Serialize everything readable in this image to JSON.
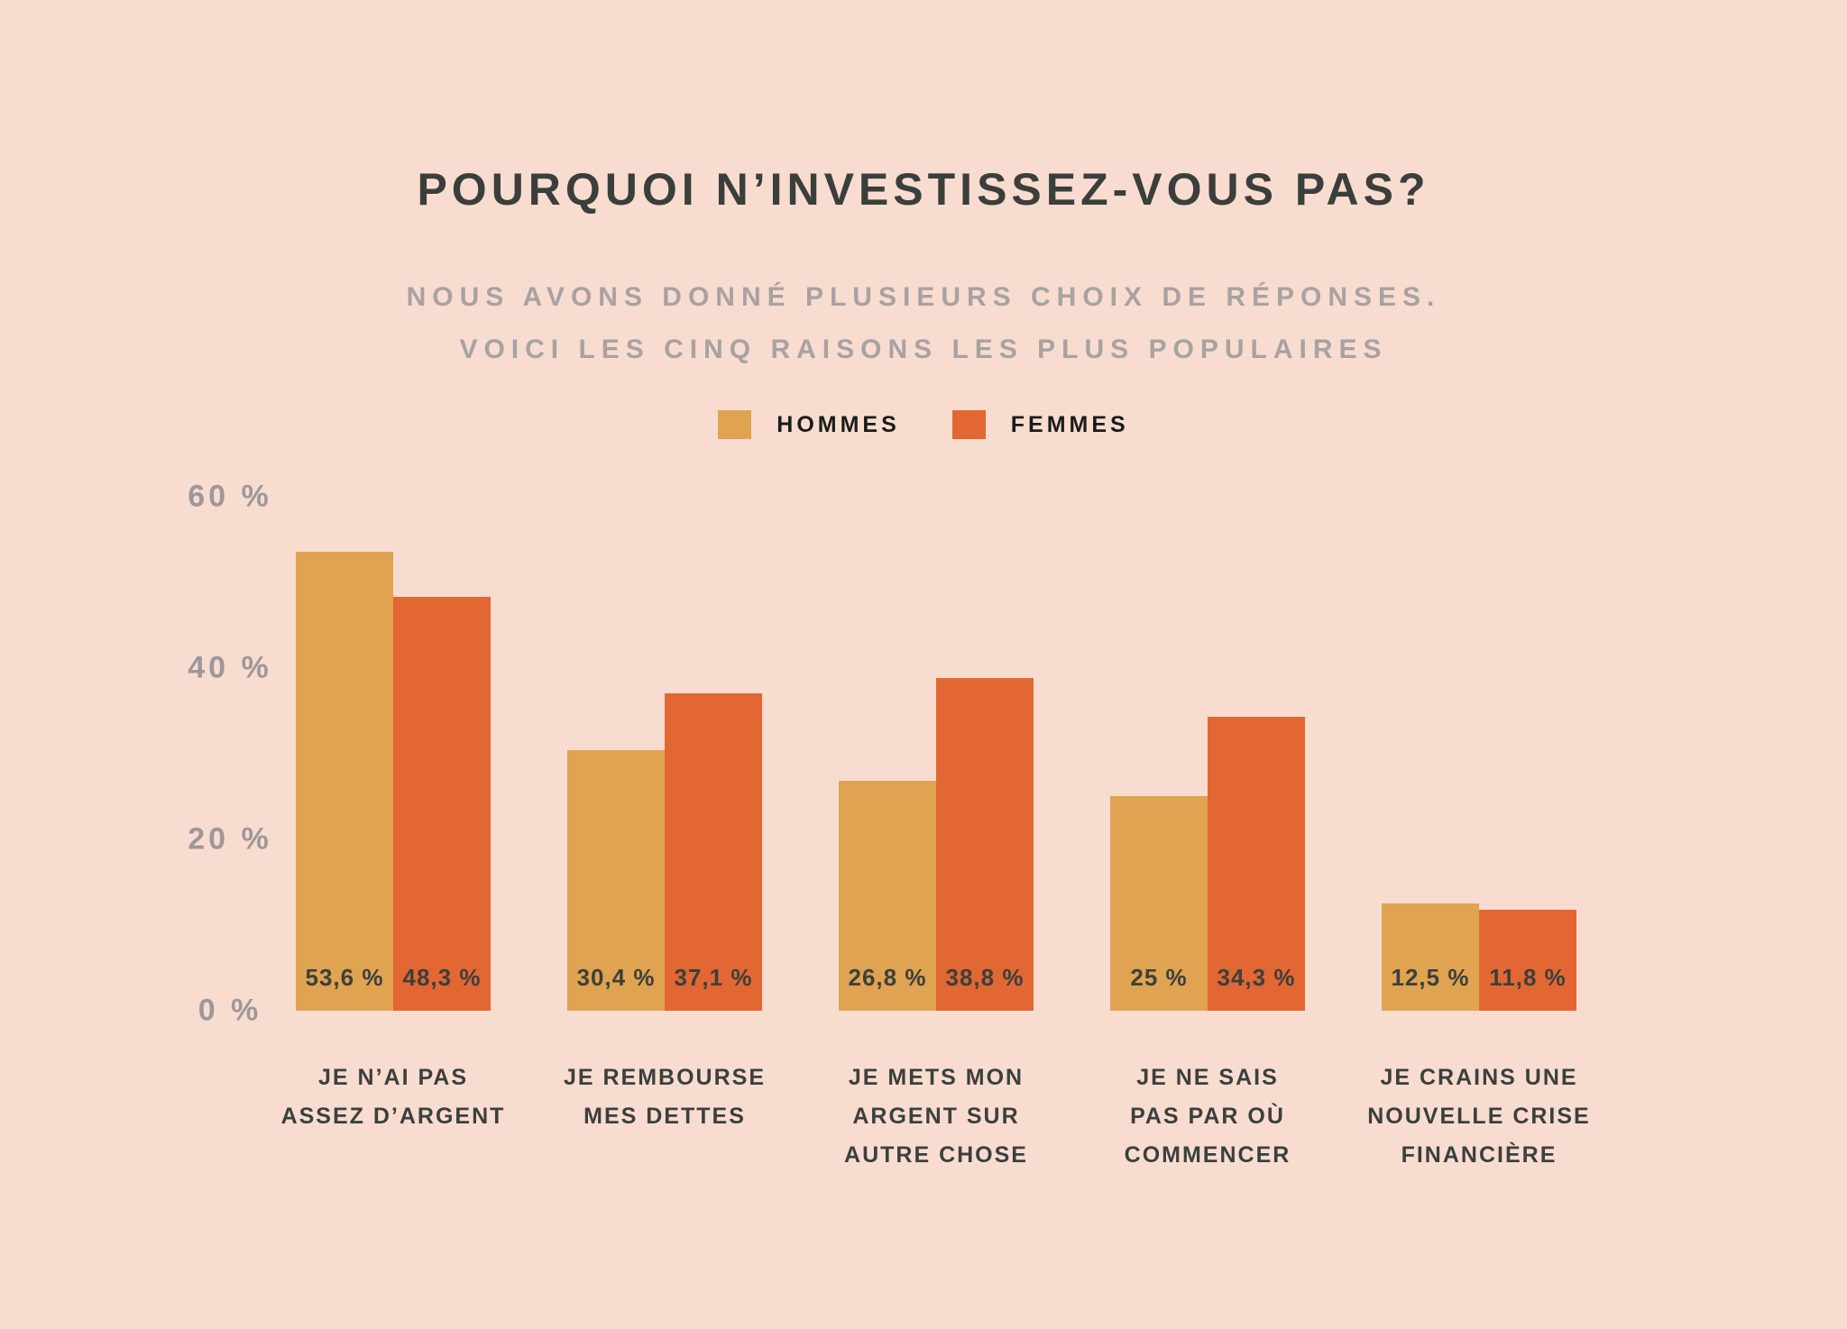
{
  "chart_data": {
    "type": "bar",
    "title": "POURQUOI N’INVESTISSEZ-VOUS PAS?",
    "subtitle_lines": [
      "NOUS AVONS DONNÉ PLUSIEURS CHOIX DE RÉPONSES.",
      "VOICI LES CINQ RAISONS LES PLUS POPULAIRES"
    ],
    "legend_position": "top",
    "legend": [
      {
        "label": "HOMMES",
        "color": "#E0A351"
      },
      {
        "label": "FEMMES",
        "color": "#E26733"
      }
    ],
    "categories": [
      "JE N’AI PAS ASSEZ D’ARGENT",
      "JE REMBOURSE MES DETTES",
      "JE METS MON ARGENT SUR AUTRE CHOSE",
      "JE NE SAIS PAS PAR OÙ COMMENCER",
      "JE CRAINS UNE NOUVELLE CRISE FINANCIÈRE"
    ],
    "category_label_lines": [
      [
        "JE N’AI PAS",
        "ASSEZ D’ARGENT"
      ],
      [
        "JE REMBOURSE",
        "MES DETTES"
      ],
      [
        "JE METS MON",
        "ARGENT SUR",
        "AUTRE CHOSE"
      ],
      [
        "JE NE SAIS",
        "PAS PAR OÙ",
        "COMMENCER"
      ],
      [
        "JE CRAINS UNE",
        "NOUVELLE CRISE",
        "FINANCIÈRE"
      ]
    ],
    "series": [
      {
        "name": "HOMMES",
        "color": "#E0A351",
        "values": [
          53.6,
          30.4,
          26.8,
          25,
          12.5
        ],
        "value_labels": [
          "53,6 %",
          "30,4 %",
          "26,8 %",
          "25 %",
          "12,5 %"
        ]
      },
      {
        "name": "FEMMES",
        "color": "#E26733",
        "values": [
          48.3,
          37.1,
          38.8,
          34.3,
          11.8
        ],
        "value_labels": [
          "48,3 %",
          "37,1 %",
          "38,8 %",
          "34,3 %",
          "11,8 %"
        ]
      }
    ],
    "yticks": [
      {
        "value": 60,
        "label": "60 %"
      },
      {
        "value": 40,
        "label": "40 %"
      },
      {
        "value": 20,
        "label": "20 %"
      },
      {
        "value": 0,
        "label": "0 %"
      }
    ],
    "ylim": [
      0,
      60
    ],
    "grid": false,
    "colors": {
      "background": "#F9DCD0",
      "title_text": "#3A3F3B",
      "subtitle_text": "#A8A2A2",
      "axis_label_text": "#9D979A",
      "value_label_text": "#3B403C",
      "category_label_text": "#3B403C",
      "legend_text": "#191C1A"
    }
  }
}
